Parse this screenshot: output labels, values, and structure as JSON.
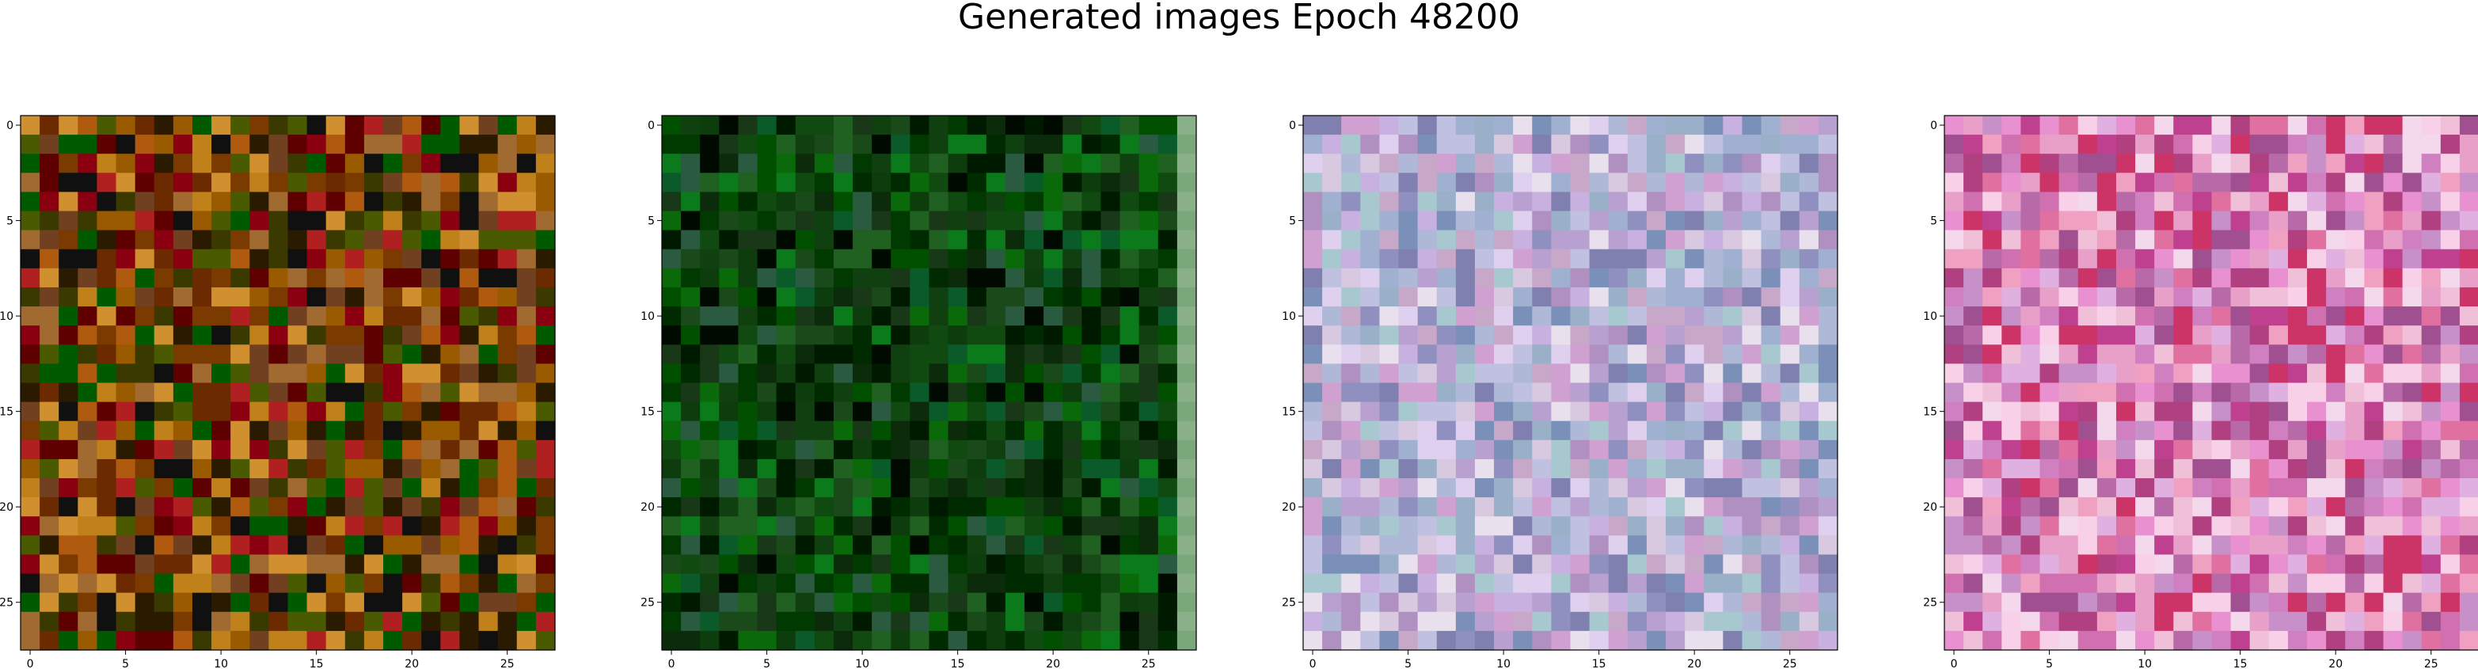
{
  "figure": {
    "title": "Generated images Epoch 48200"
  },
  "panels": [
    {
      "palette": [
        "#7a3a00",
        "#5f0000",
        "#2a1a00",
        "#6b2a00",
        "#9a5a00",
        "#b05a10",
        "#3a3a00",
        "#005a00",
        "#c0801a",
        "#8a0010",
        "#101010",
        "#d09030",
        "#4a5a00",
        "#b02020",
        "#704020",
        "#a06a30"
      ],
      "x_ticks": [
        "0",
        "5",
        "10",
        "15",
        "20",
        "25"
      ],
      "y_ticks": [
        "0",
        "5",
        "10",
        "15",
        "20",
        "25"
      ]
    },
    {
      "palette": [
        "#003a00",
        "#005000",
        "#0a6a0a",
        "#002a00",
        "#104a10",
        "#001a00",
        "#0a7a1a",
        "#1a4a1a",
        "#000a00",
        "#206020",
        "#2a5a40",
        "#0d3d0d",
        "#0a5a2a",
        "#104010",
        "#0b2b0b",
        "#183818"
      ],
      "x_ticks": [
        "0",
        "5",
        "10",
        "15",
        "20",
        "25"
      ],
      "y_ticks": [
        "0",
        "5",
        "10",
        "15",
        "20",
        "25"
      ]
    },
    {
      "palette": [
        "#b8a0d0",
        "#c8b0e0",
        "#9090c0",
        "#d8c8e0",
        "#a0b0d0",
        "#c0c0e0",
        "#e0d0f0",
        "#8080b0",
        "#b090c0",
        "#a8c8d0",
        "#d0a0d0",
        "#9ab0c8",
        "#c8a8c8",
        "#7a90b8",
        "#e8e0ec",
        "#b0b8d8"
      ],
      "x_ticks": [
        "0",
        "5",
        "10",
        "15",
        "20",
        "25"
      ],
      "y_ticks": [
        "0",
        "5",
        "10",
        "15",
        "20",
        "25"
      ]
    },
    {
      "palette": [
        "#e8a0c8",
        "#d070b0",
        "#f0c0d8",
        "#c04090",
        "#e0b0e0",
        "#b86aa8",
        "#f8d0e8",
        "#a05090",
        "#d080c0",
        "#e070a0",
        "#c890c8",
        "#f0a0c0",
        "#b04080",
        "#e890d0",
        "#cc3366",
        "#f4d8ec"
      ],
      "x_ticks": [
        "0",
        "5",
        "10",
        "15",
        "20",
        "25"
      ],
      "y_ticks": [
        "0",
        "5",
        "10",
        "15",
        "20",
        "25"
      ]
    }
  ]
}
